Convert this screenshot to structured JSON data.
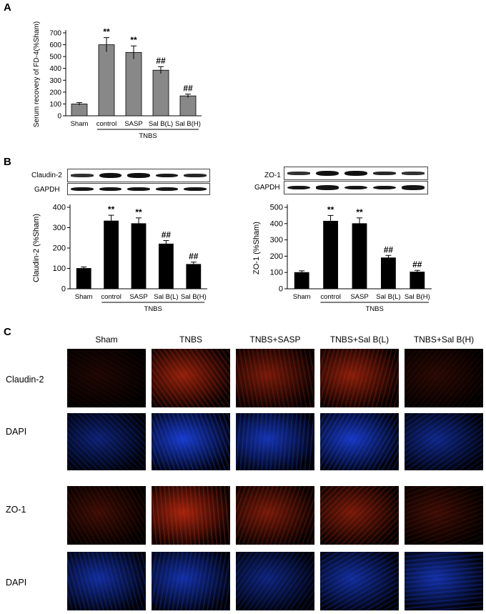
{
  "panel_labels": {
    "a": "A",
    "b": "B",
    "c": "C"
  },
  "chart_data": [
    {
      "type": "bar",
      "panel": "A",
      "ylabel": "Serum recovery of FD-4(%Sham)",
      "categories": [
        "Sham",
        "control",
        "SASP",
        "Sal B(L)",
        "Sal B(H)"
      ],
      "group_label": "TNBS",
      "values": [
        100,
        600,
        535,
        385,
        168
      ],
      "errors": [
        12,
        60,
        55,
        30,
        15
      ],
      "annotations": [
        "",
        "**",
        "**",
        "##",
        "##"
      ],
      "yticks": [
        0,
        100,
        200,
        300,
        400,
        500,
        600,
        700
      ],
      "ylim": [
        0,
        700
      ],
      "bar_color": "#888888"
    },
    {
      "type": "bar",
      "panel": "B-left",
      "ylabel": "Claudin-2 (%Sham)",
      "categories": [
        "Sham",
        "control",
        "SASP",
        "Sal B(L)",
        "Sal B(H)"
      ],
      "group_label": "TNBS",
      "values": [
        100,
        333,
        320,
        220,
        120
      ],
      "errors": [
        7,
        28,
        28,
        17,
        11
      ],
      "annotations": [
        "",
        "**",
        "**",
        "##",
        "##"
      ],
      "yticks": [
        0,
        100,
        200,
        300,
        400
      ],
      "ylim": [
        0,
        400
      ],
      "bar_color": "#000000"
    },
    {
      "type": "bar",
      "panel": "B-right",
      "ylabel": "ZO-1 (%Sham)",
      "categories": [
        "Sham",
        "control",
        "SASP",
        "Sal B(L)",
        "Sal B(H)"
      ],
      "group_label": "TNBS",
      "values": [
        100,
        415,
        400,
        190,
        103
      ],
      "errors": [
        10,
        35,
        35,
        15,
        10
      ],
      "annotations": [
        "",
        "**",
        "**",
        "##",
        "##"
      ],
      "yticks": [
        0,
        100,
        200,
        300,
        400,
        500
      ],
      "ylim": [
        0,
        500
      ],
      "bar_color": "#000000"
    }
  ],
  "blots": {
    "left": {
      "top_label": "Claudin-2",
      "bottom_label": "GAPDH"
    },
    "right": {
      "top_label": "ZO-1",
      "bottom_label": "GAPDH"
    }
  },
  "panel_c": {
    "column_headers": [
      "Sham",
      "TNBS",
      "TNBS+SASP",
      "TNBS+Sal B(L)",
      "TNBS+Sal B(H)"
    ],
    "row_labels": [
      "Claudin-2",
      "DAPI",
      "ZO-1",
      "DAPI"
    ],
    "row_colors": [
      "#c02a10",
      "#1a3fd8",
      "#c02a10",
      "#1a3fd8"
    ],
    "intensity": [
      [
        0.15,
        0.75,
        0.6,
        0.7,
        0.2
      ],
      [
        0.5,
        0.95,
        0.8,
        0.9,
        0.6
      ],
      [
        0.3,
        0.85,
        0.6,
        0.6,
        0.3
      ],
      [
        0.7,
        0.75,
        0.55,
        0.7,
        0.75
      ]
    ]
  }
}
